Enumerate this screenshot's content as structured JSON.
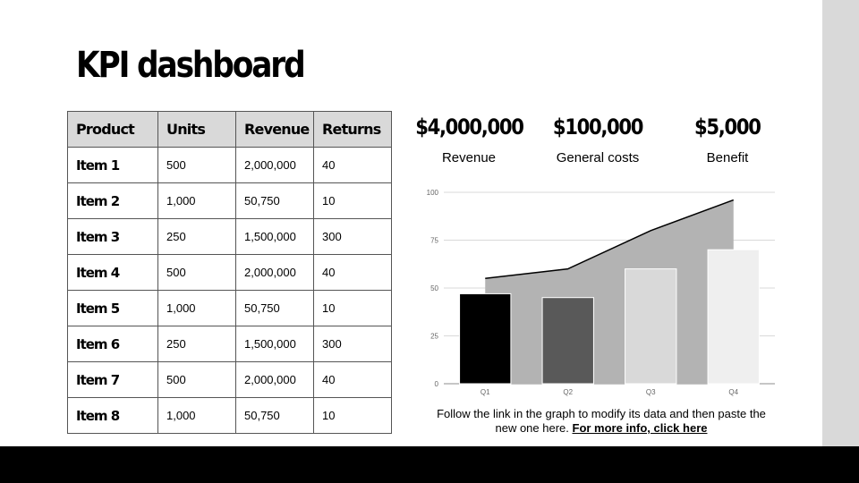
{
  "title": "KPI dashboard",
  "table": {
    "headers": [
      "Product",
      "Units",
      "Revenue",
      "Returns"
    ],
    "rows": [
      [
        "Item 1",
        "500",
        "2,000,000",
        "40"
      ],
      [
        "Item 2",
        "1,000",
        "50,750",
        "10"
      ],
      [
        "Item 3",
        "250",
        "1,500,000",
        "300"
      ],
      [
        "Item 4",
        "500",
        "2,000,000",
        "40"
      ],
      [
        "Item 5",
        "1,000",
        "50,750",
        "10"
      ],
      [
        "Item 6",
        "250",
        "1,500,000",
        "300"
      ],
      [
        "Item 7",
        "500",
        "2,000,000",
        "40"
      ],
      [
        "Item 8",
        "1,000",
        "50,750",
        "10"
      ]
    ]
  },
  "metrics": [
    {
      "value": "$4,000,000",
      "label": "Revenue"
    },
    {
      "value": "$100,000",
      "label": "General costs"
    },
    {
      "value": "$5,000",
      "label": "Benefit"
    }
  ],
  "chart_data": {
    "type": "bar",
    "categories": [
      "Q1",
      "Q2",
      "Q3",
      "Q4"
    ],
    "ylim": [
      0,
      100
    ],
    "yticks": [
      0,
      25,
      50,
      75,
      100
    ],
    "grid": true,
    "series": [
      {
        "kind": "bar",
        "values": [
          47,
          45,
          60,
          70
        ],
        "colors": [
          "#000000",
          "#595959",
          "#d9d9d9",
          "#efefef"
        ]
      },
      {
        "kind": "area",
        "values": [
          55,
          60,
          80,
          96
        ],
        "color": "#b3b3b3"
      }
    ]
  },
  "note": {
    "text": "Follow the link in the graph to modify its data and then paste the new one here. ",
    "link_text": "For more info, click here"
  }
}
